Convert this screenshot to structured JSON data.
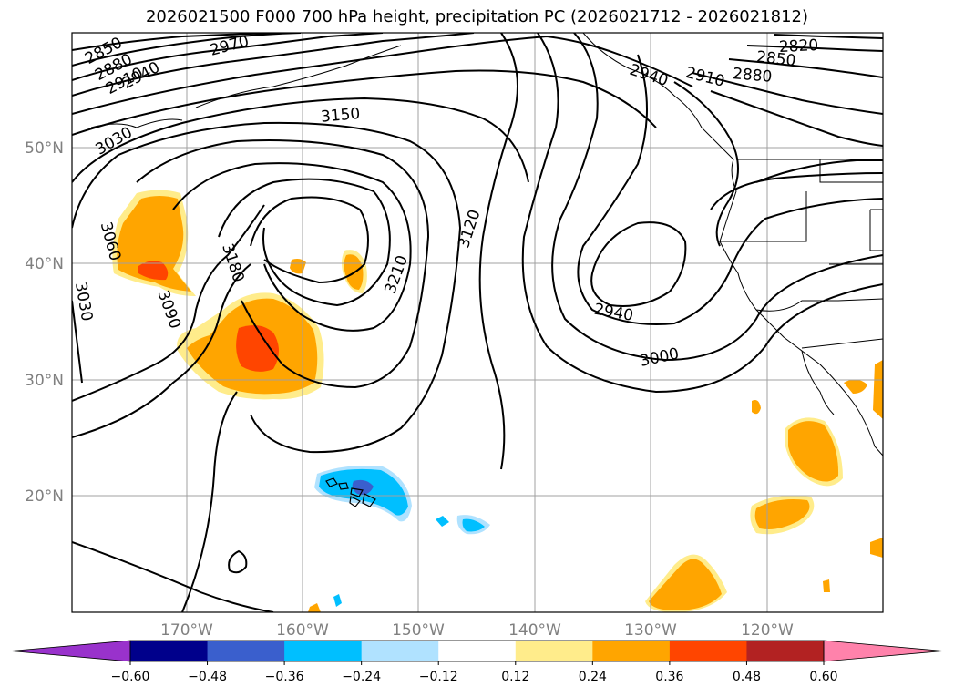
{
  "title": "2026021500 F000 700 hPa height, precipitation PC (2026021712 - 2026021812)",
  "map": {
    "lat_labels": [
      "50°N",
      "40°N",
      "30°N",
      "20°N"
    ],
    "lon_labels": [
      "170°W",
      "160°W",
      "150°W",
      "140°W",
      "130°W",
      "120°W"
    ],
    "grid": true
  },
  "contour_labels": [
    "2850",
    "2880",
    "2910",
    "2940",
    "2970",
    "3030",
    "3150",
    "3060",
    "3030",
    "3180",
    "3090",
    "3210",
    "3120",
    "2940",
    "3000",
    "2940",
    "2910",
    "2880",
    "2850",
    "2820"
  ],
  "colorbar": {
    "ticks": [
      "−0.60",
      "−0.48",
      "−0.36",
      "−0.24",
      "−0.12",
      "0.12",
      "0.24",
      "0.36",
      "0.48",
      "0.60"
    ],
    "colors": [
      "#9932cc",
      "#00008b",
      "#3a5fcd",
      "#00bfff",
      "#b0e2ff",
      "#ffffff",
      "#ffec8b",
      "#ffa500",
      "#ff4500",
      "#b22222",
      "#ff82ab"
    ]
  }
}
